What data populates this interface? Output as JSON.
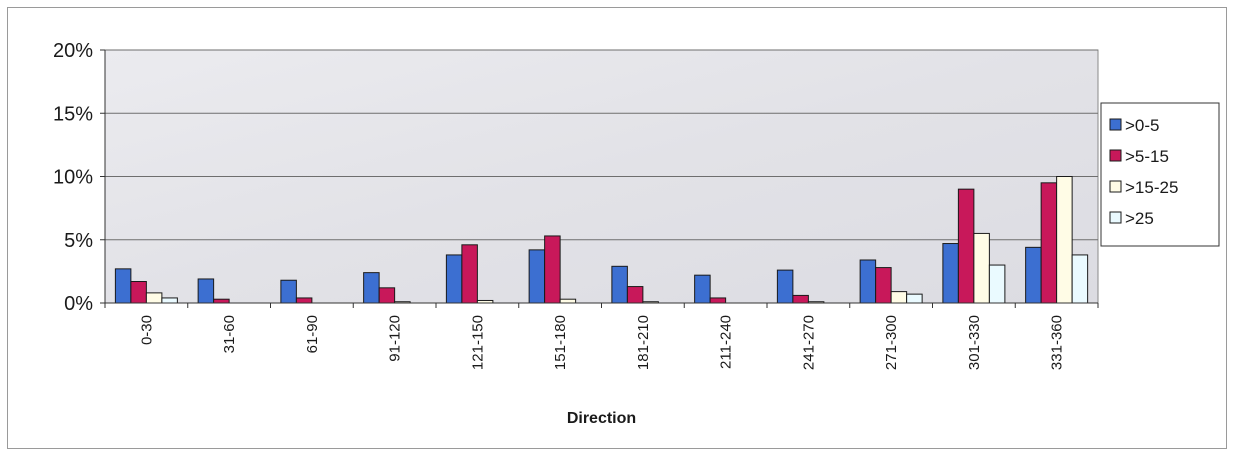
{
  "chart_data": {
    "type": "bar",
    "title": "",
    "xlabel": "Direction",
    "ylabel": "",
    "ylim": [
      0,
      20
    ],
    "y_ticks": [
      {
        "value": 0,
        "label": "0%"
      },
      {
        "value": 5,
        "label": "5%"
      },
      {
        "value": 10,
        "label": "10%"
      },
      {
        "value": 15,
        "label": "15%"
      },
      {
        "value": 20,
        "label": "20%"
      }
    ],
    "grid": true,
    "legend_position": "right",
    "categories": [
      "0-30",
      "31-60",
      "61-90",
      "91-120",
      "121-150",
      "151-180",
      "181-210",
      "211-240",
      "241-270",
      "271-300",
      "301-330",
      "331-360"
    ],
    "series": [
      {
        "name": ">0-5",
        "color": "#3c6fd1",
        "values": [
          2.7,
          1.9,
          1.8,
          2.4,
          3.8,
          4.2,
          2.9,
          2.2,
          2.6,
          3.4,
          4.7,
          4.4
        ]
      },
      {
        "name": ">5-15",
        "color": "#c8185a",
        "values": [
          1.7,
          0.3,
          0.4,
          1.2,
          4.6,
          5.3,
          1.3,
          0.4,
          0.6,
          2.8,
          9.0,
          9.5
        ]
      },
      {
        "name": ">15-25",
        "color": "#fffce6",
        "values": [
          0.8,
          0.0,
          0.0,
          0.1,
          0.2,
          0.3,
          0.1,
          0.0,
          0.1,
          0.9,
          5.5,
          10.0
        ]
      },
      {
        "name": ">25",
        "color": "#eafaff",
        "values": [
          0.4,
          0.0,
          0.0,
          0.0,
          0.0,
          0.0,
          0.0,
          0.0,
          0.0,
          0.7,
          3.0,
          3.8
        ]
      }
    ]
  }
}
